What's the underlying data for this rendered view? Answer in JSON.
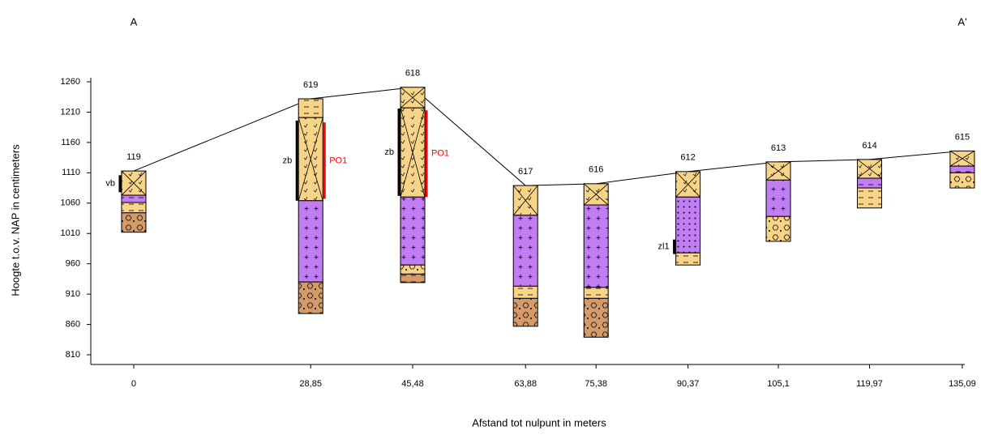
{
  "chart_data": {
    "type": "borehole-section",
    "left_label": "A",
    "right_label": "A'",
    "xlabel": "Afstand tot nulpunt in meters",
    "ylabel": "Hoogte t.o.v. NAP in centimeters",
    "xlim": [
      -7,
      135.5
    ],
    "ylim": [
      794,
      1260
    ],
    "yticks": [
      810,
      860,
      910,
      960,
      1010,
      1060,
      1110,
      1160,
      1210,
      1260
    ],
    "xticks": [
      0,
      {
        "value": 28.85,
        "label": "28,85"
      },
      {
        "value": 45.48,
        "label": "45,48"
      },
      {
        "value": 63.88,
        "label": "63,88"
      },
      {
        "value": 75.38,
        "label": "75,38"
      },
      {
        "value": 90.37,
        "label": "90,37"
      },
      {
        "value": 105.1,
        "label": "105,1"
      },
      {
        "value": 119.97,
        "label": "119,97"
      },
      {
        "value": 135.09,
        "label": "135,09"
      }
    ],
    "line_color": "#000000",
    "boreholes": [
      {
        "name": "119",
        "x": 0,
        "top": 1113,
        "layers": [
          {
            "bottom": 1073,
            "color": "#f7d488",
            "pattern": "cross"
          },
          {
            "bottom": 1061,
            "color": "#c07ef2",
            "pattern": "dash"
          },
          {
            "bottom": 1044,
            "color": "#f7d488",
            "pattern": "dash"
          },
          {
            "bottom": 1012,
            "color": "#d49a6a",
            "pattern": "gravel"
          }
        ],
        "annotations": [
          {
            "label": "vb",
            "top": 1106,
            "bottom": 1078,
            "side": "left",
            "color": "#000000"
          }
        ]
      },
      {
        "name": "619",
        "x": 28.85,
        "top": 1232,
        "layers": [
          {
            "bottom": 1201,
            "color": "#f7d488",
            "pattern": "dash"
          },
          {
            "bottom": 1064,
            "color": "#f7d488",
            "pattern": "cross"
          },
          {
            "bottom": 930,
            "color": "#c07ef2",
            "pattern": "plus"
          },
          {
            "bottom": 878,
            "color": "#d49a6a",
            "pattern": "gravel"
          }
        ],
        "annotations": [
          {
            "label": "zb",
            "top": 1196,
            "bottom": 1064,
            "side": "left",
            "color": "#000000"
          },
          {
            "label": "PO1",
            "top": 1193,
            "bottom": 1067,
            "side": "right",
            "color": "#ff0000"
          }
        ]
      },
      {
        "name": "618",
        "x": 45.48,
        "top": 1251,
        "layers": [
          {
            "bottom": 1217,
            "color": "#f7d488",
            "pattern": "cross"
          },
          {
            "bottom": 1070,
            "color": "#f7d488",
            "pattern": "cross"
          },
          {
            "bottom": 958,
            "color": "#c07ef2",
            "pattern": "plus"
          },
          {
            "bottom": 943,
            "color": "#f7d488",
            "pattern": "gravel"
          },
          {
            "bottom": 929,
            "color": "#d49a6a",
            "pattern": "dash"
          }
        ],
        "annotations": [
          {
            "label": "zb",
            "top": 1216,
            "bottom": 1072,
            "side": "left",
            "color": "#000000"
          },
          {
            "label": "PO1",
            "top": 1213,
            "bottom": 1070,
            "side": "right",
            "color": "#ff0000"
          }
        ]
      },
      {
        "name": "617",
        "x": 63.88,
        "top": 1089,
        "layers": [
          {
            "bottom": 1040,
            "color": "#f7d488",
            "pattern": "cross"
          },
          {
            "bottom": 923,
            "color": "#c07ef2",
            "pattern": "plus"
          },
          {
            "bottom": 903,
            "color": "#f7d488",
            "pattern": "dash"
          },
          {
            "bottom": 857,
            "color": "#d49a6a",
            "pattern": "gravel"
          }
        ],
        "annotations": []
      },
      {
        "name": "616",
        "x": 75.38,
        "top": 1092,
        "layers": [
          {
            "bottom": 1057,
            "color": "#f7d488",
            "pattern": "cross"
          },
          {
            "bottom": 921,
            "color": "#c07ef2",
            "pattern": "plus"
          },
          {
            "bottom": 903,
            "color": "#f7d488",
            "pattern": "dash"
          },
          {
            "bottom": 839,
            "color": "#d49a6a",
            "pattern": "gravel"
          }
        ],
        "annotations": []
      },
      {
        "name": "612",
        "x": 90.37,
        "top": 1112,
        "layers": [
          {
            "bottom": 1070,
            "color": "#f7d488",
            "pattern": "cross"
          },
          {
            "bottom": 978,
            "color": "#c07ef2",
            "pattern": "dot"
          },
          {
            "bottom": 958,
            "color": "#f7d488",
            "pattern": "dash"
          }
        ],
        "annotations": [
          {
            "label": "zl1",
            "top": 1000,
            "bottom": 976,
            "side": "left",
            "color": "#000000"
          }
        ]
      },
      {
        "name": "613",
        "x": 105.1,
        "top": 1128,
        "layers": [
          {
            "bottom": 1098,
            "color": "#f7d488",
            "pattern": "cross"
          },
          {
            "bottom": 1038,
            "color": "#c07ef2",
            "pattern": "plus"
          },
          {
            "bottom": 997,
            "color": "#f7d488",
            "pattern": "gravel"
          }
        ],
        "annotations": []
      },
      {
        "name": "614",
        "x": 119.97,
        "top": 1132,
        "layers": [
          {
            "bottom": 1101,
            "color": "#f7d488",
            "pattern": "cross"
          },
          {
            "bottom": 1085,
            "color": "#c07ef2",
            "pattern": "dash"
          },
          {
            "bottom": 1052,
            "color": "#f7d488",
            "pattern": "dash"
          }
        ],
        "annotations": []
      },
      {
        "name": "615",
        "x": 135.09,
        "top": 1146,
        "layers": [
          {
            "bottom": 1121,
            "color": "#f7d488",
            "pattern": "cross"
          },
          {
            "bottom": 1110,
            "color": "#c07ef2",
            "pattern": "dash"
          },
          {
            "bottom": 1085,
            "color": "#f7d488",
            "pattern": "gravel"
          }
        ],
        "annotations": []
      }
    ]
  }
}
